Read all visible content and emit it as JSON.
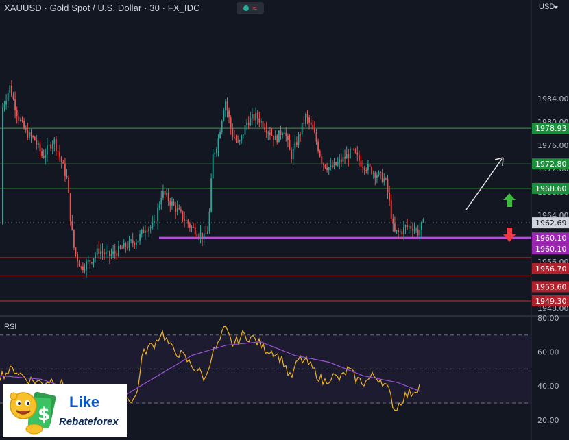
{
  "header": {
    "title": "XAUUSD · Gold Spot / U.S. Dollar · 30 · FX_IDC",
    "market_status_icon": "green-dot-icon",
    "wave_icon": "≈"
  },
  "currency": "USD",
  "price_axis": {
    "ticks": [
      "1984.00",
      "1980.00",
      "1976.00",
      "1972.00",
      "1968.00",
      "1964.00",
      "1960.00",
      "1956.00",
      "1952.00",
      "1948.00"
    ],
    "current_price": "1962.69",
    "labels": [
      {
        "text": "1978.93",
        "price": 1978.93,
        "color": "#1b8f3c"
      },
      {
        "text": "1972.80",
        "price": 1972.8,
        "color": "#1b8f3c"
      },
      {
        "text": "1968.60",
        "price": 1968.6,
        "color": "#1b8f3c"
      },
      {
        "text": "1960.10",
        "price": 1960.1,
        "color": "#9c27b0"
      },
      {
        "text": "1960.10",
        "price": 1960.1,
        "color": "#9c27b0"
      },
      {
        "text": "1956.70",
        "price": 1956.7,
        "color": "#b2222d"
      },
      {
        "text": "1953.60",
        "price": 1953.6,
        "color": "#b2222d"
      },
      {
        "text": "1949.30",
        "price": 1949.3,
        "color": "#b2222d"
      }
    ]
  },
  "levels": {
    "resistance": [
      1978.93,
      1972.8,
      1968.6
    ],
    "pivot": 1960.1,
    "support": [
      1956.7,
      1953.6,
      1949.3
    ],
    "colors": {
      "resistance": "#4caf50",
      "pivot": "#b34fd6",
      "support": "#e53935"
    }
  },
  "rsi": {
    "title": "RSI",
    "ticks": [
      "80.00",
      "60.00",
      "40.00",
      "20.00"
    ],
    "line_color": "#f0b323",
    "ma_color": "#9c52d6"
  },
  "logo": {
    "line1": "Like",
    "line2": "Rebateforex"
  },
  "colors": {
    "up": "#26a69a",
    "down": "#ef5350",
    "bg": "#131722"
  }
}
